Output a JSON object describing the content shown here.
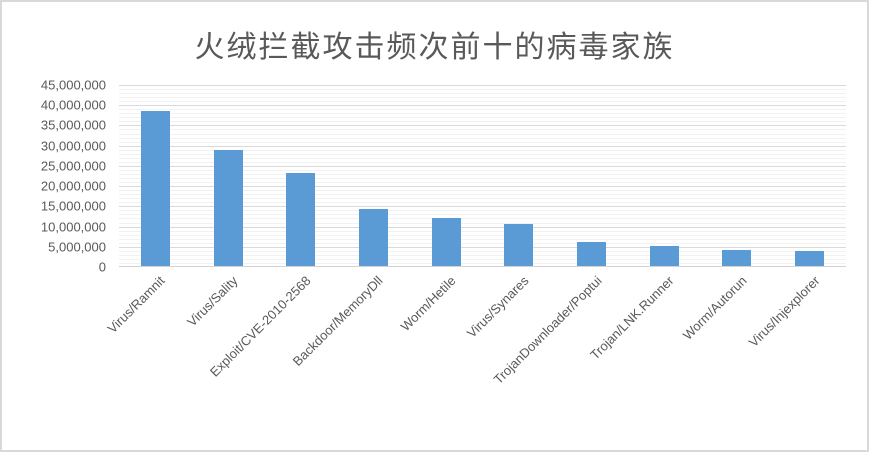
{
  "frame": {
    "background_color": "#ffffff",
    "border_color": "#d9d9d9"
  },
  "chart_data": {
    "type": "bar",
    "title": "火绒拦截攻击频次前十的病毒家族",
    "xlabel": "",
    "ylabel": "",
    "categories": [
      "Virus/Ramnit",
      "Virus/Sality",
      "Exploit/CVE-2010-2568",
      "Backdoor/MemoryDll",
      "Worm/Hetile",
      "Virus/Synares",
      "TrojanDownloader/Poptui",
      "Trojan/LNK.Runner",
      "Worm/Autorun",
      "Virus/Injexplorer"
    ],
    "values": [
      38500000,
      28900000,
      23300000,
      14300000,
      12000000,
      10700000,
      6100000,
      5100000,
      4200000,
      3900000
    ],
    "ylim": [
      0,
      45000000
    ],
    "y_major_unit": 5000000,
    "y_minor_unit": 1000000,
    "y_tick_labels": [
      "45,000,000",
      "40,000,000",
      "35,000,000",
      "30,000,000",
      "25,000,000",
      "20,000,000",
      "15,000,000",
      "10,000,000",
      "5,000,000",
      "0"
    ],
    "grid": "horizontal major+minor",
    "legend": "none",
    "bar_color": "#5b9bd5",
    "text_color": "#595959",
    "gridline_major_color": "#d9d9d9",
    "gridline_minor_color": "#f2f2f2",
    "axis_line_color": "#d3d3d3"
  }
}
